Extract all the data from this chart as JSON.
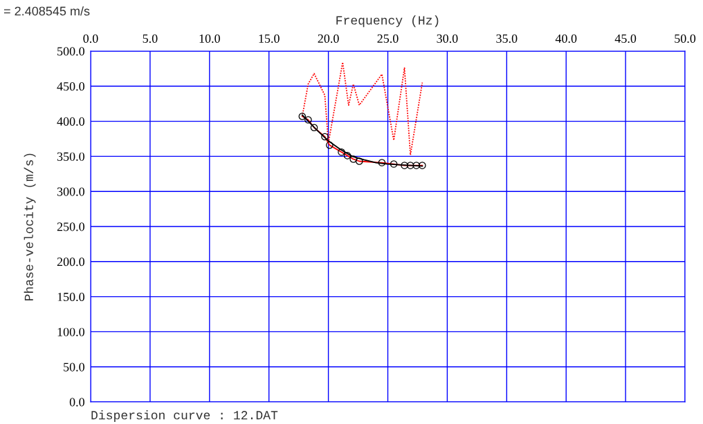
{
  "chart_data": {
    "type": "line",
    "xlabel": "Frequency (Hz)",
    "ylabel": "Phase-velocity (m/s)",
    "annotations": [
      "= 2.408545 m/s",
      "Dispersion curve : 12.DAT"
    ],
    "xlim": [
      0,
      50
    ],
    "ylim": [
      0,
      500
    ],
    "xticks": [
      {
        "value": 0,
        "label": "0.0"
      },
      {
        "value": 5,
        "label": "5.0"
      },
      {
        "value": 10,
        "label": "10.0"
      },
      {
        "value": 15,
        "label": "15.0"
      },
      {
        "value": 20,
        "label": "20.0"
      },
      {
        "value": 25,
        "label": "25.0"
      },
      {
        "value": 30,
        "label": "30.0"
      },
      {
        "value": 35,
        "label": "35.0"
      },
      {
        "value": 40,
        "label": "40.0"
      },
      {
        "value": 45,
        "label": "45.0"
      },
      {
        "value": 50,
        "label": "50.0"
      }
    ],
    "yticks": [
      {
        "value": 0,
        "label": "0.0"
      },
      {
        "value": 50,
        "label": "50.0"
      },
      {
        "value": 100,
        "label": "100.0"
      },
      {
        "value": 150,
        "label": "150.0"
      },
      {
        "value": 200,
        "label": "200.0"
      },
      {
        "value": 250,
        "label": "250.0"
      },
      {
        "value": 300,
        "label": "300.0"
      },
      {
        "value": 350,
        "label": "350.0"
      },
      {
        "value": 400,
        "label": "400.0"
      },
      {
        "value": 450,
        "label": "450.0"
      },
      {
        "value": 500,
        "label": "500.0"
      }
    ],
    "grid": true,
    "tick_labels": "both",
    "series": [
      {
        "color": "#ff0000",
        "line_style": "dotted",
        "marker": "none",
        "x": [
          17.8,
          18.3,
          18.8,
          19.7,
          20.0,
          21.2,
          21.7,
          22.1,
          22.6,
          24.5,
          25.5,
          26.4,
          26.9,
          27.9
        ],
        "values": [
          407,
          453,
          468,
          437,
          369,
          484,
          423,
          453,
          423,
          467,
          373,
          476,
          352,
          455
        ]
      },
      {
        "color": "#ff0000",
        "line_style": "solid",
        "marker": "none",
        "x": [
          17.8,
          18.3,
          18.8,
          19.7,
          20.1,
          21.1,
          21.6,
          22.1,
          22.6,
          24.5,
          25.5,
          26.4,
          26.9,
          27.4,
          27.9
        ],
        "values": [
          407,
          402,
          391,
          378,
          366,
          356,
          351,
          346,
          343,
          341,
          339,
          337,
          337,
          337,
          337
        ]
      },
      {
        "color": "#000000",
        "line_style": "solid",
        "marker": "none",
        "x": [
          17.8,
          19.0,
          20.0,
          21.0,
          22.0,
          23.0,
          24.0,
          25.0,
          26.0,
          27.0,
          27.9
        ],
        "values": [
          409,
          388,
          372,
          360,
          350,
          345,
          341,
          339,
          338,
          337,
          336
        ]
      },
      {
        "type": "scatter",
        "color": "#000000",
        "marker": "circle",
        "x": [
          17.8,
          18.3,
          18.8,
          19.7,
          20.1,
          21.1,
          21.6,
          22.1,
          22.6,
          24.5,
          25.5,
          26.4,
          26.9,
          27.4,
          27.9
        ],
        "values": [
          407,
          402,
          391,
          378,
          366,
          356,
          351,
          346,
          343,
          341,
          339,
          337,
          337,
          337,
          337
        ]
      }
    ]
  }
}
